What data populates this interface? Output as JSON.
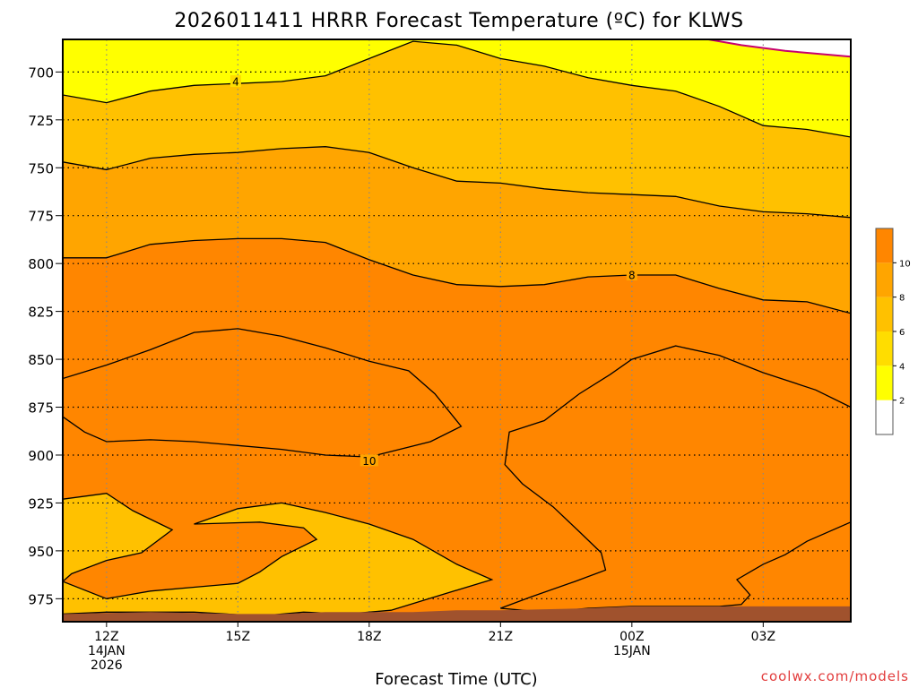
{
  "title": "2026011411 HRRR Forecast Temperature (ºC) for KLWS",
  "credit": "coolwx.com/models",
  "colors": {
    "fill_lt2": "#ffffff",
    "fill_2_4": "#ffff00",
    "fill_4_6": "#ffdd00",
    "fill_6_8": "#ffc100",
    "fill_8_10": "#ffa500",
    "fill_gt10": "#ff8600",
    "ground": "#a0522d",
    "freezing_line": "#c8006e",
    "grid": "#000000",
    "credit": "#e23c3c"
  },
  "chart_data": {
    "type": "heatmap",
    "subtype": "filled-contour time-height cross section",
    "title": "2026011411 HRRR Forecast Temperature (ºC) for KLWS",
    "xlabel": "Forecast Time (UTC)",
    "ylabel": "",
    "x_unit": "forecast hour from 11Z 14JAN2026",
    "xlim": [
      0,
      18
    ],
    "ylim": [
      987,
      683
    ],
    "y_axis": "pressure (hPa), inverted",
    "x_ticks": [
      {
        "hour": 1,
        "lines": [
          "12Z",
          "14JAN",
          "2026"
        ]
      },
      {
        "hour": 4,
        "lines": [
          "15Z"
        ]
      },
      {
        "hour": 7,
        "lines": [
          "18Z"
        ]
      },
      {
        "hour": 10,
        "lines": [
          "21Z"
        ]
      },
      {
        "hour": 13,
        "lines": [
          "00Z",
          "15JAN"
        ]
      },
      {
        "hour": 16,
        "lines": [
          "03Z"
        ]
      }
    ],
    "y_ticks": [
      700,
      725,
      750,
      775,
      800,
      825,
      850,
      875,
      900,
      925,
      950,
      975
    ],
    "grid": "dotted, on",
    "colorbar": {
      "placement": "right",
      "levels": [
        0,
        2,
        4,
        6,
        8,
        10,
        12
      ],
      "labels": [
        "2",
        "4",
        "6",
        "8",
        "10"
      ]
    },
    "contour_labels": [
      {
        "text": "4",
        "hour": 3.95,
        "p": 705
      },
      {
        "text": "8",
        "hour": 13,
        "p": 806
      },
      {
        "text": "10",
        "hour": 7,
        "p": 903
      }
    ],
    "contours": [
      {
        "level": 2,
        "band": "fill_2_4",
        "upper_edge": true,
        "points": [
          [
            14.75,
            683
          ],
          [
            15.5,
            686
          ],
          [
            16.5,
            689
          ],
          [
            18,
            692
          ]
        ]
      },
      {
        "level": 4,
        "band": "fill_4_6",
        "points": [
          [
            0,
            712
          ],
          [
            1,
            716
          ],
          [
            2,
            710
          ],
          [
            3,
            707
          ],
          [
            4,
            706
          ],
          [
            5,
            705
          ],
          [
            6,
            702
          ],
          [
            7,
            693
          ],
          [
            8,
            684
          ],
          [
            9,
            686
          ],
          [
            10,
            693
          ],
          [
            11,
            697
          ],
          [
            12,
            703
          ],
          [
            13,
            707
          ],
          [
            14,
            710
          ],
          [
            15,
            718
          ],
          [
            16,
            728
          ],
          [
            17,
            730
          ],
          [
            18,
            734
          ]
        ]
      },
      {
        "level": 6,
        "band": "fill_6_8",
        "points": [
          [
            0,
            747
          ],
          [
            1,
            751
          ],
          [
            2,
            745
          ],
          [
            3,
            743
          ],
          [
            4,
            742
          ],
          [
            5,
            740
          ],
          [
            6,
            739
          ],
          [
            7,
            742
          ],
          [
            8,
            750
          ],
          [
            9,
            757
          ],
          [
            10,
            758
          ],
          [
            11,
            761
          ],
          [
            12,
            763
          ],
          [
            13,
            764
          ],
          [
            14,
            765
          ],
          [
            15,
            770
          ],
          [
            16,
            773
          ],
          [
            17,
            774
          ],
          [
            18,
            776
          ]
        ]
      },
      {
        "level": 8,
        "band": "fill_8_10",
        "points": [
          [
            0,
            797
          ],
          [
            1,
            797
          ],
          [
            2,
            790
          ],
          [
            3,
            788
          ],
          [
            4,
            787
          ],
          [
            5,
            787
          ],
          [
            6,
            789
          ],
          [
            7,
            798
          ],
          [
            8,
            806
          ],
          [
            9,
            811
          ],
          [
            10,
            812
          ],
          [
            11,
            811
          ],
          [
            12,
            807
          ],
          [
            13,
            806
          ],
          [
            14,
            806
          ],
          [
            15,
            813
          ],
          [
            16,
            819
          ],
          [
            17,
            820
          ],
          [
            18,
            826
          ]
        ]
      },
      {
        "level": 8.5,
        "band": "fill_6_8",
        "closed": true,
        "points": [
          [
            0,
            923
          ],
          [
            1,
            920
          ],
          [
            1.6,
            929
          ],
          [
            2.5,
            939
          ],
          [
            1.8,
            951
          ],
          [
            1,
            955
          ],
          [
            0.2,
            962
          ],
          [
            0,
            966
          ],
          [
            1,
            975
          ],
          [
            2,
            971
          ],
          [
            3,
            969
          ],
          [
            4,
            967
          ],
          [
            4.5,
            961
          ],
          [
            5,
            953
          ],
          [
            5.8,
            944
          ],
          [
            5.5,
            938
          ],
          [
            4.5,
            935
          ],
          [
            3,
            936
          ],
          [
            4,
            928
          ],
          [
            5,
            925
          ],
          [
            6,
            930
          ],
          [
            7,
            936
          ],
          [
            8,
            944
          ],
          [
            9,
            957
          ],
          [
            9.8,
            965
          ],
          [
            8.5,
            974
          ],
          [
            7.5,
            981
          ],
          [
            6.5,
            983
          ],
          [
            5.5,
            982
          ],
          [
            4.5,
            984
          ],
          [
            3,
            982
          ],
          [
            2,
            982
          ],
          [
            1,
            982
          ],
          [
            0,
            983
          ]
        ]
      },
      {
        "level": 10,
        "band": "fill_gt10",
        "closed": true,
        "points": [
          [
            0,
            860
          ],
          [
            1,
            853
          ],
          [
            2,
            845
          ],
          [
            3,
            836
          ],
          [
            4,
            834
          ],
          [
            5,
            838
          ],
          [
            6,
            844
          ],
          [
            7,
            851
          ],
          [
            7.9,
            856
          ],
          [
            8.5,
            868
          ],
          [
            9.1,
            885
          ],
          [
            8.4,
            893
          ],
          [
            7,
            901
          ],
          [
            6,
            900
          ],
          [
            5,
            897
          ],
          [
            4,
            895
          ],
          [
            3,
            893
          ],
          [
            2,
            892
          ],
          [
            1,
            893
          ],
          [
            0.5,
            888
          ],
          [
            0,
            880
          ]
        ]
      },
      {
        "level": 10,
        "band": "fill_gt10",
        "closed": true,
        "points": [
          [
            10.2,
            888
          ],
          [
            10.1,
            905
          ],
          [
            10.5,
            915
          ],
          [
            11.2,
            927
          ],
          [
            11.8,
            940
          ],
          [
            12.3,
            951
          ],
          [
            12.4,
            960
          ],
          [
            11.7,
            966
          ],
          [
            10.7,
            974
          ],
          [
            10,
            980
          ],
          [
            11,
            982
          ],
          [
            12,
            980
          ],
          [
            13,
            979
          ],
          [
            14,
            979
          ],
          [
            15,
            979
          ],
          [
            15.5,
            978
          ],
          [
            15.7,
            973
          ],
          [
            15.4,
            965
          ],
          [
            16,
            957
          ],
          [
            16.5,
            952
          ],
          [
            17,
            945
          ],
          [
            18,
            935
          ],
          [
            18,
            875
          ],
          [
            17.2,
            866
          ],
          [
            16,
            857
          ],
          [
            15,
            848
          ],
          [
            14,
            843
          ],
          [
            13,
            850
          ],
          [
            12.5,
            858
          ],
          [
            11.8,
            868
          ],
          [
            11,
            882
          ]
        ]
      }
    ]
  }
}
